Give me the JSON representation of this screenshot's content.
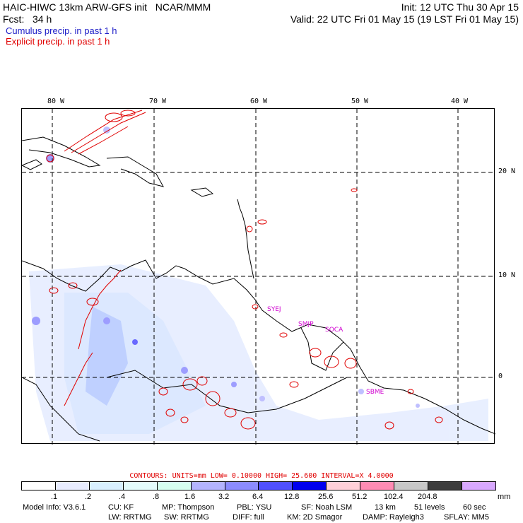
{
  "header": {
    "title": "HAIC-HIWC 13km ARW-GFS init   NCAR/MMM",
    "forecast": "Fcst:   34 h",
    "init": "Init: 12 UTC Thu 30 Apr 15",
    "valid": "Valid: 22 UTC Fri 01 May 15 (19 LST Fri 01 May 15)"
  },
  "legend": {
    "cumulus": "Cumulus precip. in past 1 h",
    "explicit": "Explicit precip. in past 1 h",
    "cumulus_color": "#2020c8",
    "explicit_color": "#e00000"
  },
  "map": {
    "longitudes": [
      "80 W",
      "70 W",
      "60 W",
      "50 W",
      "40 W"
    ],
    "latitudes": [
      "20 N",
      "10 N",
      "0"
    ],
    "stations": [
      "SYEJ",
      "SMJP",
      "SOCA",
      "SBME"
    ],
    "station_color": "#d000d0"
  },
  "contours": {
    "text": "CONTOURS:  UNITS=mm  LOW= 0.10000    HIGH=  25.600     INTERVAL=X   4.0000"
  },
  "colorbar": {
    "colors": [
      "#ffffff",
      "#e8ecff",
      "#d8f0ff",
      "#e4fcfc",
      "#d6fff0",
      "#b4b4ff",
      "#8c8cff",
      "#5050ff",
      "#0000ee",
      "#ffd0d8",
      "#ff8cb4",
      "#c8c8c8",
      "#3c3c3c",
      "#d8a8ff"
    ],
    "ticks": [
      ".1",
      ".2",
      ".4",
      ".8",
      "1.6",
      "3.2",
      "6.4",
      "12.8",
      "25.6",
      "51.2",
      "102.4",
      "204.8"
    ],
    "units": "mm"
  },
  "model_info": {
    "line1": [
      "Model Info: V3.6.1",
      "CU: KF",
      "MP: Thompson",
      "PBL: YSU",
      "SF: Noah LSM",
      "13 km",
      "51 levels",
      "60 sec"
    ],
    "line2": [
      "LW: RRTMG",
      "SW: RRTMG",
      "DIFF: full",
      "KM: 2D Smagor",
      "DAMP: Rayleigh3",
      "SFLAY: MM5"
    ]
  }
}
